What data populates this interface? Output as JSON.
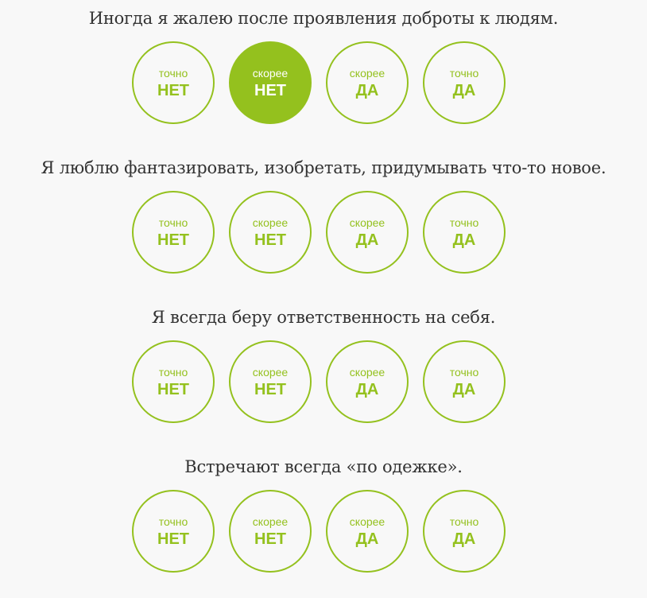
{
  "accent_color": "#94c11e",
  "questions": [
    {
      "text": "Иногда я жалею после проявления доброты к людям.",
      "selected_index": 1,
      "options": [
        {
          "top": "точно",
          "bottom": "НЕТ"
        },
        {
          "top": "скорее",
          "bottom": "НЕТ"
        },
        {
          "top": "скорее",
          "bottom": "ДА"
        },
        {
          "top": "точно",
          "bottom": "ДА"
        }
      ]
    },
    {
      "text": "Я люблю фантазировать, изобретать, придумывать что-то новое.",
      "selected_index": -1,
      "options": [
        {
          "top": "точно",
          "bottom": "НЕТ"
        },
        {
          "top": "скорее",
          "bottom": "НЕТ"
        },
        {
          "top": "скорее",
          "bottom": "ДА"
        },
        {
          "top": "точно",
          "bottom": "ДА"
        }
      ]
    },
    {
      "text": "Я всегда беру ответственность на себя.",
      "selected_index": -1,
      "options": [
        {
          "top": "точно",
          "bottom": "НЕТ"
        },
        {
          "top": "скорее",
          "bottom": "НЕТ"
        },
        {
          "top": "скорее",
          "bottom": "ДА"
        },
        {
          "top": "точно",
          "bottom": "ДА"
        }
      ]
    },
    {
      "text": "Встречают всегда «по одежке».",
      "selected_index": -1,
      "options": [
        {
          "top": "точно",
          "bottom": "НЕТ"
        },
        {
          "top": "скорее",
          "bottom": "НЕТ"
        },
        {
          "top": "скорее",
          "bottom": "ДА"
        },
        {
          "top": "точно",
          "bottom": "ДА"
        }
      ]
    }
  ]
}
